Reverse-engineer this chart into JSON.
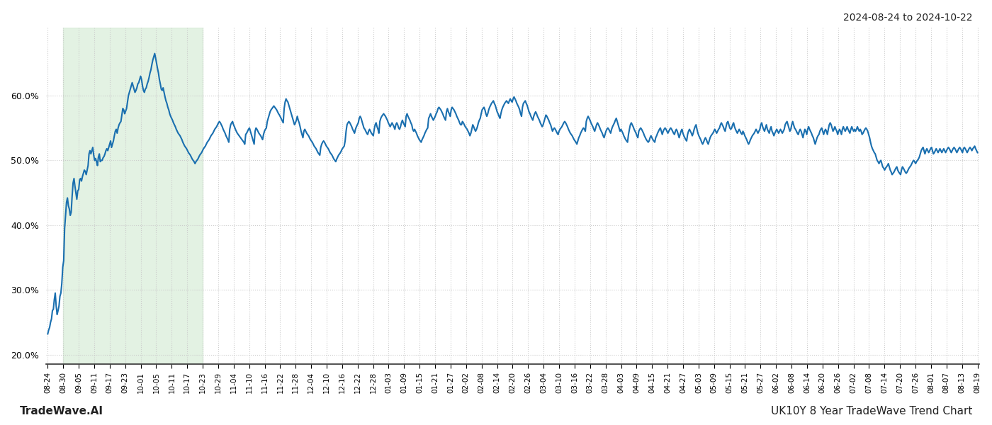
{
  "title_top_right": "2024-08-24 to 2024-10-22",
  "bottom_left": "TradeWave.AI",
  "bottom_right": "UK10Y 8 Year TradeWave Trend Chart",
  "line_color": "#1a6faf",
  "line_width": 1.5,
  "shaded_region_color": "#cde8cd",
  "shaded_alpha": 0.55,
  "ylim": [
    0.185,
    0.705
  ],
  "yticks": [
    0.2,
    0.3,
    0.4,
    0.5,
    0.6
  ],
  "background_color": "#ffffff",
  "grid_color": "#cccccc",
  "grid_style": ":",
  "x_labels": [
    "08-24",
    "08-30",
    "09-05",
    "09-11",
    "09-17",
    "09-23",
    "10-01",
    "10-05",
    "10-11",
    "10-17",
    "10-23",
    "10-29",
    "11-04",
    "11-10",
    "11-16",
    "11-22",
    "11-28",
    "12-04",
    "12-10",
    "12-16",
    "12-22",
    "12-28",
    "01-03",
    "01-09",
    "01-15",
    "01-21",
    "01-27",
    "02-02",
    "02-08",
    "02-14",
    "02-20",
    "02-26",
    "03-04",
    "03-10",
    "03-16",
    "03-22",
    "03-28",
    "04-03",
    "04-09",
    "04-15",
    "04-21",
    "04-27",
    "05-03",
    "05-09",
    "05-15",
    "05-21",
    "05-27",
    "06-02",
    "06-08",
    "06-14",
    "06-20",
    "06-26",
    "07-02",
    "07-08",
    "07-14",
    "07-20",
    "07-26",
    "08-01",
    "08-07",
    "08-13",
    "08-19"
  ],
  "shaded_start_label": "08-30",
  "shaded_end_label": "10-23",
  "values": [
    0.232,
    0.238,
    0.242,
    0.25,
    0.255,
    0.268,
    0.27,
    0.285,
    0.295,
    0.275,
    0.262,
    0.268,
    0.275,
    0.29,
    0.295,
    0.31,
    0.335,
    0.345,
    0.395,
    0.415,
    0.435,
    0.442,
    0.43,
    0.425,
    0.415,
    0.42,
    0.445,
    0.465,
    0.472,
    0.46,
    0.45,
    0.44,
    0.453,
    0.455,
    0.47,
    0.472,
    0.468,
    0.475,
    0.48,
    0.485,
    0.483,
    0.478,
    0.485,
    0.492,
    0.51,
    0.515,
    0.51,
    0.515,
    0.52,
    0.508,
    0.5,
    0.503,
    0.498,
    0.492,
    0.505,
    0.51,
    0.498,
    0.5,
    0.5,
    0.504,
    0.506,
    0.51,
    0.515,
    0.518,
    0.515,
    0.52,
    0.525,
    0.53,
    0.52,
    0.525,
    0.53,
    0.538,
    0.545,
    0.548,
    0.542,
    0.55,
    0.555,
    0.558,
    0.56,
    0.57,
    0.58,
    0.578,
    0.572,
    0.576,
    0.58,
    0.59,
    0.6,
    0.605,
    0.61,
    0.615,
    0.62,
    0.615,
    0.61,
    0.605,
    0.608,
    0.612,
    0.618,
    0.62,
    0.625,
    0.63,
    0.625,
    0.615,
    0.608,
    0.605,
    0.61,
    0.612,
    0.618,
    0.622,
    0.628,
    0.635,
    0.64,
    0.648,
    0.655,
    0.66,
    0.665,
    0.658,
    0.65,
    0.642,
    0.635,
    0.625,
    0.618,
    0.61,
    0.608,
    0.612,
    0.605,
    0.598,
    0.592,
    0.588,
    0.582,
    0.578,
    0.572,
    0.568,
    0.565,
    0.562,
    0.558,
    0.555,
    0.552,
    0.548,
    0.545,
    0.542,
    0.54,
    0.538,
    0.535,
    0.532,
    0.528,
    0.525,
    0.522,
    0.52,
    0.518,
    0.515,
    0.512,
    0.51,
    0.508,
    0.505,
    0.502,
    0.5,
    0.498,
    0.495,
    0.498,
    0.5,
    0.502,
    0.505,
    0.508,
    0.51,
    0.512,
    0.515,
    0.518,
    0.52,
    0.522,
    0.525,
    0.528,
    0.53,
    0.532,
    0.535,
    0.538,
    0.54,
    0.542,
    0.545,
    0.548,
    0.55,
    0.552,
    0.555,
    0.558,
    0.56,
    0.558,
    0.555,
    0.552,
    0.548,
    0.545,
    0.542,
    0.538,
    0.535,
    0.532,
    0.528,
    0.548,
    0.555,
    0.558,
    0.56,
    0.555,
    0.552,
    0.548,
    0.545,
    0.542,
    0.54,
    0.538,
    0.536,
    0.534,
    0.532,
    0.53,
    0.528,
    0.525,
    0.54,
    0.542,
    0.545,
    0.548,
    0.55,
    0.545,
    0.54,
    0.535,
    0.53,
    0.525,
    0.545,
    0.55,
    0.548,
    0.545,
    0.542,
    0.54,
    0.538,
    0.535,
    0.532,
    0.54,
    0.545,
    0.548,
    0.55,
    0.56,
    0.565,
    0.57,
    0.575,
    0.578,
    0.58,
    0.582,
    0.584,
    0.582,
    0.58,
    0.578,
    0.575,
    0.572,
    0.57,
    0.567,
    0.564,
    0.561,
    0.558,
    0.58,
    0.59,
    0.595,
    0.592,
    0.59,
    0.585,
    0.58,
    0.575,
    0.57,
    0.565,
    0.56,
    0.555,
    0.558,
    0.562,
    0.568,
    0.562,
    0.558,
    0.552,
    0.545,
    0.54,
    0.535,
    0.545,
    0.548,
    0.545,
    0.542,
    0.54,
    0.538,
    0.535,
    0.532,
    0.53,
    0.528,
    0.525,
    0.522,
    0.52,
    0.518,
    0.515,
    0.512,
    0.51,
    0.508,
    0.52,
    0.525,
    0.528,
    0.53,
    0.528,
    0.525,
    0.522,
    0.52,
    0.518,
    0.515,
    0.512,
    0.51,
    0.508,
    0.505,
    0.502,
    0.5,
    0.498,
    0.502,
    0.505,
    0.508,
    0.51,
    0.512,
    0.515,
    0.518,
    0.52,
    0.522,
    0.53,
    0.545,
    0.555,
    0.558,
    0.56,
    0.558,
    0.555,
    0.552,
    0.548,
    0.545,
    0.542,
    0.548,
    0.552,
    0.555,
    0.558,
    0.565,
    0.568,
    0.565,
    0.56,
    0.555,
    0.55,
    0.548,
    0.545,
    0.542,
    0.54,
    0.545,
    0.548,
    0.545,
    0.542,
    0.54,
    0.538,
    0.548,
    0.555,
    0.558,
    0.552,
    0.548,
    0.542,
    0.56,
    0.565,
    0.568,
    0.57,
    0.572,
    0.57,
    0.568,
    0.565,
    0.562,
    0.558,
    0.555,
    0.552,
    0.555,
    0.558,
    0.555,
    0.552,
    0.548,
    0.555,
    0.558,
    0.555,
    0.55,
    0.548,
    0.552,
    0.558,
    0.562,
    0.558,
    0.555,
    0.552,
    0.568,
    0.572,
    0.568,
    0.565,
    0.562,
    0.558,
    0.555,
    0.548,
    0.545,
    0.548,
    0.545,
    0.542,
    0.538,
    0.535,
    0.532,
    0.53,
    0.528,
    0.532,
    0.535,
    0.538,
    0.542,
    0.545,
    0.548,
    0.55,
    0.565,
    0.568,
    0.572,
    0.568,
    0.565,
    0.562,
    0.565,
    0.568,
    0.572,
    0.575,
    0.58,
    0.582,
    0.58,
    0.578,
    0.575,
    0.572,
    0.568,
    0.565,
    0.562,
    0.575,
    0.58,
    0.575,
    0.572,
    0.568,
    0.578,
    0.582,
    0.58,
    0.578,
    0.575,
    0.572,
    0.568,
    0.565,
    0.562,
    0.558,
    0.555,
    0.555,
    0.56,
    0.558,
    0.555,
    0.552,
    0.55,
    0.548,
    0.545,
    0.542,
    0.538,
    0.542,
    0.548,
    0.555,
    0.552,
    0.548,
    0.545,
    0.548,
    0.552,
    0.558,
    0.562,
    0.565,
    0.572,
    0.578,
    0.58,
    0.582,
    0.578,
    0.572,
    0.568,
    0.572,
    0.578,
    0.582,
    0.585,
    0.588,
    0.59,
    0.592,
    0.588,
    0.585,
    0.58,
    0.575,
    0.572,
    0.568,
    0.565,
    0.572,
    0.578,
    0.582,
    0.585,
    0.588,
    0.59,
    0.592,
    0.59,
    0.588,
    0.592,
    0.595,
    0.592,
    0.59,
    0.595,
    0.598,
    0.595,
    0.592,
    0.588,
    0.585,
    0.582,
    0.578,
    0.572,
    0.568,
    0.582,
    0.588,
    0.59,
    0.592,
    0.588,
    0.585,
    0.58,
    0.575,
    0.572,
    0.568,
    0.565,
    0.562,
    0.568,
    0.572,
    0.575,
    0.572,
    0.568,
    0.565,
    0.562,
    0.558,
    0.555,
    0.552,
    0.555,
    0.56,
    0.565,
    0.57,
    0.568,
    0.565,
    0.562,
    0.558,
    0.555,
    0.55,
    0.545,
    0.548,
    0.55,
    0.548,
    0.545,
    0.542,
    0.54,
    0.545,
    0.548,
    0.55,
    0.552,
    0.555,
    0.558,
    0.56,
    0.558,
    0.555,
    0.552,
    0.548,
    0.545,
    0.542,
    0.54,
    0.538,
    0.535,
    0.532,
    0.53,
    0.528,
    0.525,
    0.53,
    0.535,
    0.538,
    0.542,
    0.545,
    0.548,
    0.55,
    0.548,
    0.545,
    0.56,
    0.565,
    0.568,
    0.565,
    0.562,
    0.558,
    0.555,
    0.552,
    0.548,
    0.545,
    0.55,
    0.555,
    0.558,
    0.555,
    0.552,
    0.548,
    0.545,
    0.542,
    0.538,
    0.535,
    0.54,
    0.545,
    0.548,
    0.55,
    0.548,
    0.545,
    0.542,
    0.548,
    0.552,
    0.555,
    0.558,
    0.562,
    0.565,
    0.56,
    0.555,
    0.55,
    0.545,
    0.548,
    0.545,
    0.542,
    0.538,
    0.535,
    0.532,
    0.53,
    0.528,
    0.54,
    0.548,
    0.555,
    0.558,
    0.555,
    0.552,
    0.548,
    0.545,
    0.542,
    0.538,
    0.535,
    0.545,
    0.548,
    0.55,
    0.548,
    0.545,
    0.542,
    0.538,
    0.535,
    0.532,
    0.53,
    0.528,
    0.53,
    0.535,
    0.538,
    0.535,
    0.532,
    0.53,
    0.528,
    0.535,
    0.538,
    0.542,
    0.545,
    0.548,
    0.55,
    0.545,
    0.54,
    0.545,
    0.548,
    0.55,
    0.548,
    0.545,
    0.542,
    0.545,
    0.548,
    0.55,
    0.548,
    0.545,
    0.542,
    0.54,
    0.545,
    0.548,
    0.545,
    0.54,
    0.535,
    0.54,
    0.545,
    0.548,
    0.542,
    0.538,
    0.535,
    0.532,
    0.53,
    0.54,
    0.545,
    0.548,
    0.545,
    0.542,
    0.538,
    0.542,
    0.548,
    0.552,
    0.555,
    0.548,
    0.542,
    0.538,
    0.535,
    0.532,
    0.528,
    0.525,
    0.528,
    0.532,
    0.535,
    0.532,
    0.528,
    0.525,
    0.53,
    0.535,
    0.538,
    0.54,
    0.542,
    0.545,
    0.548,
    0.545,
    0.542,
    0.545,
    0.548,
    0.55,
    0.555,
    0.558,
    0.555,
    0.552,
    0.548,
    0.545,
    0.552,
    0.558,
    0.56,
    0.555,
    0.55,
    0.548,
    0.55,
    0.555,
    0.558,
    0.552,
    0.548,
    0.545,
    0.542,
    0.545,
    0.548,
    0.545,
    0.542,
    0.54,
    0.545,
    0.542,
    0.538,
    0.535,
    0.532,
    0.528,
    0.525,
    0.528,
    0.532,
    0.535,
    0.538,
    0.54,
    0.542,
    0.545,
    0.548,
    0.545,
    0.542,
    0.545,
    0.548,
    0.555,
    0.558,
    0.552,
    0.548,
    0.545,
    0.55,
    0.555,
    0.548,
    0.545,
    0.542,
    0.548,
    0.552,
    0.545,
    0.542,
    0.538,
    0.542,
    0.545,
    0.548,
    0.545,
    0.542,
    0.545,
    0.548,
    0.545,
    0.542,
    0.545,
    0.548,
    0.555,
    0.558,
    0.56,
    0.555,
    0.55,
    0.545,
    0.548,
    0.555,
    0.56,
    0.555,
    0.55,
    0.548,
    0.545,
    0.542,
    0.54,
    0.545,
    0.548,
    0.545,
    0.54,
    0.535,
    0.542,
    0.548,
    0.545,
    0.54,
    0.548,
    0.552,
    0.548,
    0.545,
    0.542,
    0.538,
    0.535,
    0.53,
    0.525,
    0.53,
    0.535,
    0.538,
    0.54,
    0.545,
    0.548,
    0.55,
    0.545,
    0.54,
    0.545,
    0.548,
    0.545,
    0.54,
    0.548,
    0.555,
    0.558,
    0.555,
    0.55,
    0.545,
    0.548,
    0.552,
    0.548,
    0.545,
    0.54,
    0.545,
    0.548,
    0.545,
    0.54,
    0.548,
    0.552,
    0.548,
    0.545,
    0.548,
    0.552,
    0.548,
    0.545,
    0.542,
    0.548,
    0.552,
    0.548,
    0.545,
    0.548,
    0.545,
    0.548,
    0.552,
    0.548,
    0.545,
    0.548,
    0.545,
    0.54,
    0.542,
    0.545,
    0.548,
    0.55,
    0.548,
    0.545,
    0.54,
    0.535,
    0.528,
    0.522,
    0.518,
    0.515,
    0.512,
    0.51,
    0.505,
    0.5,
    0.498,
    0.495,
    0.498,
    0.5,
    0.495,
    0.49,
    0.488,
    0.485,
    0.488,
    0.49,
    0.492,
    0.495,
    0.49,
    0.485,
    0.482,
    0.478,
    0.48,
    0.482,
    0.485,
    0.488,
    0.49,
    0.485,
    0.482,
    0.48,
    0.478,
    0.485,
    0.49,
    0.488,
    0.485,
    0.482,
    0.48,
    0.482,
    0.485,
    0.488,
    0.49,
    0.492,
    0.495,
    0.498,
    0.5,
    0.498,
    0.495,
    0.498,
    0.5,
    0.502,
    0.505,
    0.51,
    0.515,
    0.518,
    0.52,
    0.515,
    0.51,
    0.515,
    0.518,
    0.515,
    0.512,
    0.515,
    0.518,
    0.52,
    0.515,
    0.51,
    0.512,
    0.515,
    0.518,
    0.515,
    0.512,
    0.515,
    0.518,
    0.515,
    0.512,
    0.515,
    0.518,
    0.515,
    0.512,
    0.515,
    0.518,
    0.52,
    0.518,
    0.515,
    0.512,
    0.515,
    0.518,
    0.52,
    0.518,
    0.515,
    0.512,
    0.515,
    0.518,
    0.52,
    0.518,
    0.515,
    0.512,
    0.518,
    0.52,
    0.518,
    0.515,
    0.512,
    0.515,
    0.518,
    0.52,
    0.518,
    0.515,
    0.518,
    0.52,
    0.522,
    0.518,
    0.515,
    0.512
  ]
}
